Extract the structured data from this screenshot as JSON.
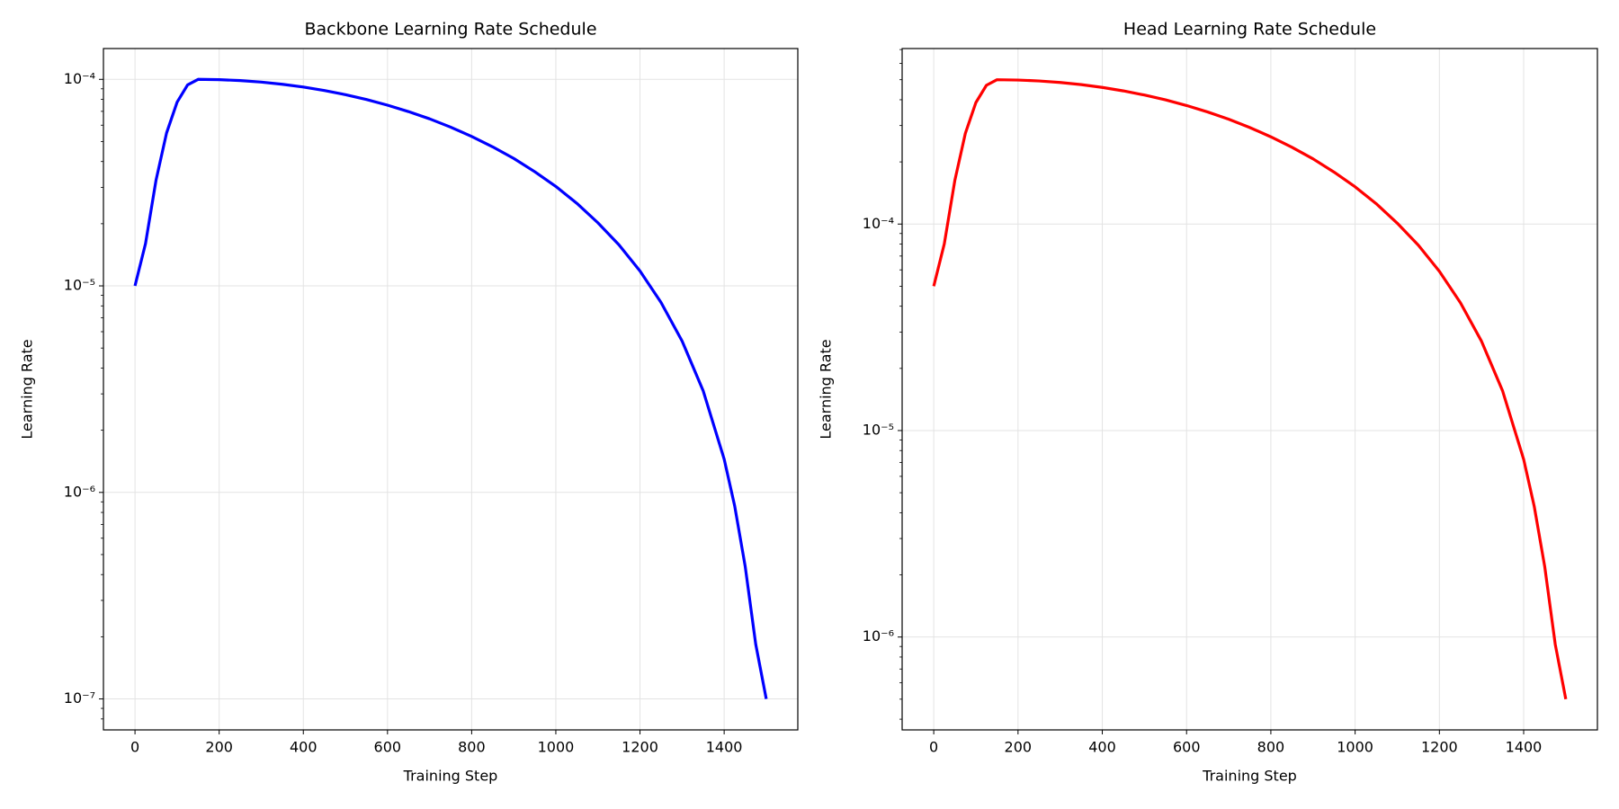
{
  "chart_data": [
    {
      "type": "line",
      "title": "Backbone Learning Rate Schedule",
      "xlabel": "Training Step",
      "ylabel": "Learning Rate",
      "log_scale": "y",
      "grid": true,
      "color": "#0000ff",
      "x": [
        0,
        25,
        50,
        75,
        100,
        125,
        150,
        200,
        250,
        300,
        350,
        400,
        450,
        500,
        550,
        600,
        650,
        700,
        750,
        800,
        850,
        900,
        950,
        1000,
        1050,
        1100,
        1150,
        1200,
        1250,
        1300,
        1350,
        1400,
        1425,
        1450,
        1475,
        1500
      ],
      "values": [
        1e-05,
        1.603e-05,
        3.25e-05,
        5.5e-05,
        7.75e-05,
        9.4e-05,
        0.0001,
        9.966e-05,
        9.866e-05,
        9.699e-05,
        9.469e-05,
        9.18e-05,
        8.83e-05,
        8.43e-05,
        7.99e-05,
        7.5e-05,
        6.98e-05,
        6.44e-05,
        5.87e-05,
        5.29e-05,
        4.71e-05,
        4.14e-05,
        3.57e-05,
        3.03e-05,
        2.51e-05,
        2.02e-05,
        1.58e-05,
        1.18e-05,
        8.31e-06,
        5.41e-06,
        3.11e-06,
        1.45e-06,
        8.6e-07,
        4.38e-07,
        1.84e-07,
        1e-07
      ],
      "xlim": [
        -75,
        1575
      ],
      "ylim": [
        7.08e-08,
        0.000141
      ],
      "xticks": [
        0,
        200,
        400,
        600,
        800,
        1000,
        1200,
        1400
      ],
      "yticks": [
        {
          "value": 1e-07,
          "label": "10⁻⁷"
        },
        {
          "value": 1e-06,
          "label": "10⁻⁶"
        },
        {
          "value": 1e-05,
          "label": "10⁻⁵"
        },
        {
          "value": 0.0001,
          "label": "10⁻⁴"
        }
      ]
    },
    {
      "type": "line",
      "title": "Head Learning Rate Schedule",
      "xlabel": "Training Step",
      "ylabel": "Learning Rate",
      "log_scale": "y",
      "grid": true,
      "color": "#ff0000",
      "x": [
        0,
        25,
        50,
        75,
        100,
        125,
        150,
        200,
        250,
        300,
        350,
        400,
        450,
        500,
        550,
        600,
        650,
        700,
        750,
        800,
        850,
        900,
        950,
        1000,
        1050,
        1100,
        1150,
        1200,
        1250,
        1300,
        1350,
        1400,
        1425,
        1450,
        1475,
        1500
      ],
      "values": [
        5e-05,
        8.015e-05,
        0.0001625,
        0.000275,
        0.0003875,
        0.00047,
        0.0005,
        0.0004983,
        0.0004933,
        0.000485,
        0.0004735,
        0.000459,
        0.0004415,
        0.0004215,
        0.0003995,
        0.000375,
        0.000349,
        0.000322,
        0.0002935,
        0.0002645,
        0.0002355,
        0.000207,
        0.0001785,
        0.0001515,
        0.0001255,
        0.000101,
        7.9e-05,
        5.9e-05,
        4.155e-05,
        2.705e-05,
        1.555e-05,
        7.25e-06,
        4.3e-06,
        2.19e-06,
        9.2e-07,
        5e-07
      ],
      "xlim": [
        -75,
        1575
      ],
      "ylim": [
        3.55e-07,
        0.000708
      ],
      "xticks": [
        0,
        200,
        400,
        600,
        800,
        1000,
        1200,
        1400
      ],
      "yticks": [
        {
          "value": 1e-06,
          "label": "10⁻⁶"
        },
        {
          "value": 1e-05,
          "label": "10⁻⁵"
        },
        {
          "value": 0.0001,
          "label": "10⁻⁴"
        }
      ]
    }
  ]
}
